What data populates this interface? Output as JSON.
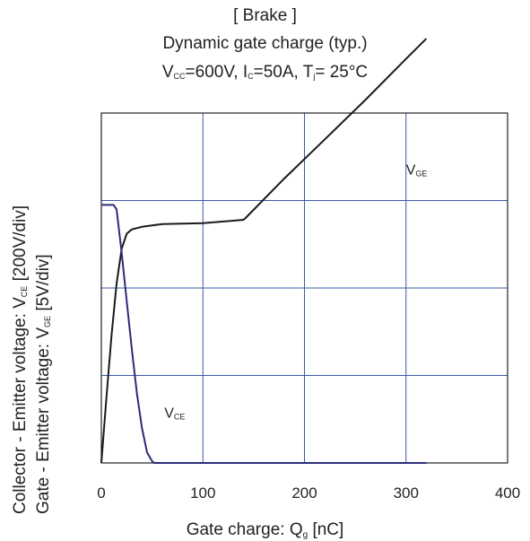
{
  "header": {
    "line1": "[ Brake ]",
    "line2": "Dynamic gate charge  (typ.)",
    "line3": {
      "v": "V",
      "v_sub": "CC",
      "v_rest": "=600V,  I",
      "i_sub": "C",
      "i_rest": "=50A,  T",
      "t_sub": "j",
      "t_rest": "= 25°C"
    }
  },
  "axes": {
    "ylabel_collector": {
      "pre": "Collector - Emitter voltage:  V",
      "sub": "CE",
      "post": " [200V/div]"
    },
    "ylabel_gate": {
      "pre": "Gate - Emitter voltage:     V",
      "sub": "GE",
      "post": " [5V/div]"
    },
    "xlabel": {
      "pre": "Gate charge: Q",
      "sub": "g",
      "post": " [nC]"
    }
  },
  "chart_data": {
    "type": "line",
    "title": "Dynamic gate charge  (typ.)",
    "xlabel": "Gate charge: Qg [nC]",
    "ylabel": [
      "Collector - Emitter voltage: VCE [200V/div]",
      "Gate - Emitter voltage: VGE [5V/div]"
    ],
    "xlim": [
      0,
      400
    ],
    "x_ticks": [
      "0",
      "100",
      "200",
      "300",
      "400"
    ],
    "y_divisions": 4,
    "grid": true,
    "series": [
      {
        "name": "VGE",
        "color": "#1a1a1a",
        "x": [
          0,
          5,
          10,
          15,
          20,
          25,
          30,
          40,
          60,
          100,
          140,
          142,
          180,
          220,
          260,
          300,
          320
        ],
        "y": [
          0,
          0.75,
          1.45,
          2.05,
          2.45,
          2.62,
          2.67,
          2.7,
          2.73,
          2.74,
          2.78,
          2.8,
          3.25,
          3.7,
          4.15,
          4.62,
          4.85
        ]
      },
      {
        "name": "VCE",
        "color": "#2b2c78",
        "x": [
          0,
          12,
          15,
          20,
          25,
          30,
          35,
          40,
          45,
          50,
          52,
          320
        ],
        "y": [
          2.95,
          2.95,
          2.9,
          2.4,
          1.85,
          1.3,
          0.8,
          0.4,
          0.12,
          0.02,
          0,
          0
        ]
      }
    ],
    "annotations": [
      {
        "label": "V",
        "sub": "GE",
        "x": 300,
        "y": 3.3
      },
      {
        "label": "V",
        "sub": "CE",
        "x": 62,
        "y": 0.52
      }
    ]
  }
}
